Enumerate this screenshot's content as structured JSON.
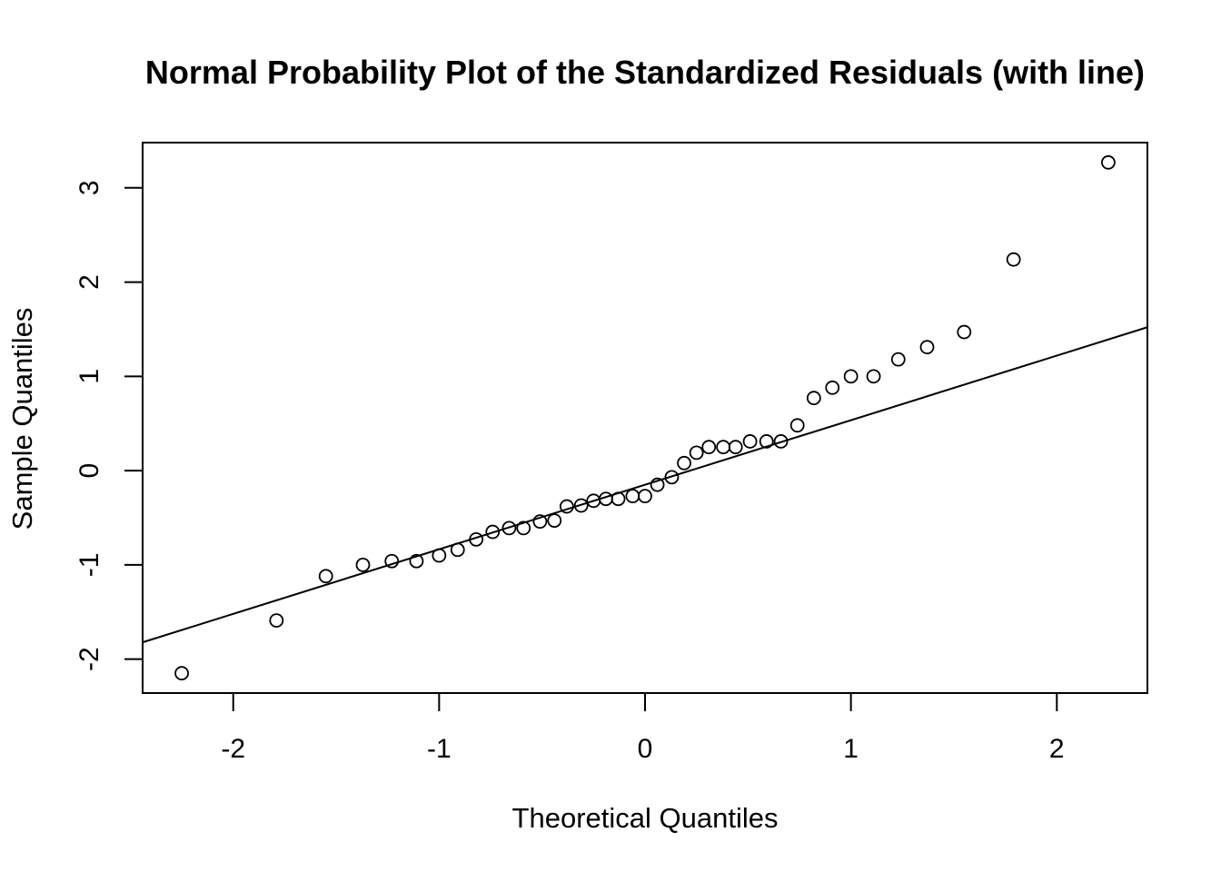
{
  "chart_data": {
    "type": "scatter",
    "title": "Normal Probability Plot of the Standardized Residuals (with line)",
    "xlabel": "Theoretical Quantiles",
    "ylabel": "Sample Quantiles",
    "xlim": [
      -2.44,
      2.44
    ],
    "ylim": [
      -2.36,
      3.48
    ],
    "xticks": [
      -2,
      -1,
      0,
      1,
      2
    ],
    "yticks": [
      -2,
      -1,
      0,
      1,
      2,
      3
    ],
    "xtick_labels": [
      "-2",
      "-1",
      "0",
      "1",
      "2"
    ],
    "ytick_labels": [
      "-2",
      "-1",
      "0",
      "1",
      "2",
      "3"
    ],
    "grid": false,
    "legend": "none",
    "point_style": "open-circle",
    "series": [
      {
        "x": [
          -2.25,
          -1.79,
          -1.55,
          -1.37,
          -1.23,
          -1.11,
          -1.0,
          -0.91,
          -0.82,
          -0.74,
          -0.66,
          -0.59,
          -0.51,
          -0.44,
          -0.38,
          -0.31,
          -0.25,
          -0.19,
          -0.13,
          -0.06,
          0.0,
          0.06,
          0.13,
          0.19,
          0.25,
          0.31,
          0.38,
          0.44,
          0.51,
          0.59,
          0.66,
          0.74,
          0.82,
          0.91,
          1.0,
          1.11,
          1.23,
          1.37,
          1.55,
          1.79,
          2.25
        ],
        "y": [
          -2.15,
          -1.59,
          -1.12,
          -1.0,
          -0.96,
          -0.96,
          -0.9,
          -0.84,
          -0.73,
          -0.65,
          -0.61,
          -0.61,
          -0.54,
          -0.53,
          -0.38,
          -0.37,
          -0.32,
          -0.3,
          -0.3,
          -0.27,
          -0.27,
          -0.15,
          -0.07,
          0.08,
          0.19,
          0.25,
          0.25,
          0.25,
          0.31,
          0.31,
          0.31,
          0.48,
          0.77,
          0.88,
          1.0,
          1.0,
          1.18,
          1.31,
          1.47,
          2.24,
          3.27
        ]
      }
    ],
    "reference_line": {
      "intercept": -0.15,
      "slope": 0.685
    }
  }
}
